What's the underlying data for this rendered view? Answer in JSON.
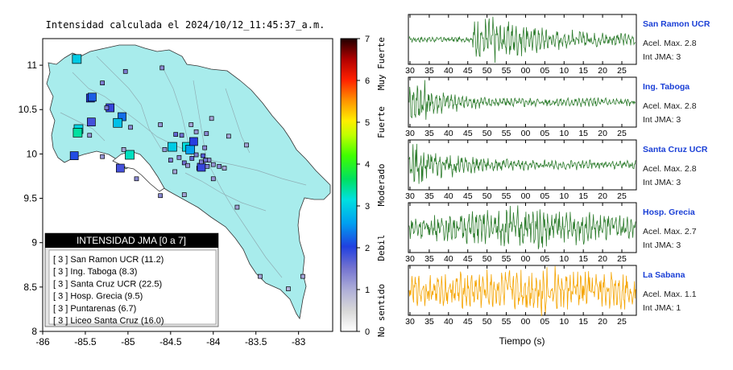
{
  "map": {
    "title": "Intensidad calculada el 2024/10/12_11:45:37_a.m.",
    "x_ticks": [
      "-86",
      "-85.5",
      "-85",
      "-84.5",
      "-84",
      "-83.5",
      "-83"
    ],
    "y_ticks": [
      "11",
      "10.5",
      "10",
      "9.5",
      "9",
      "8.5",
      "8"
    ],
    "legend": {
      "title": "INTENSIDAD JMA [0 a 7]",
      "items": [
        "[ 3 ]  San Ramon UCR (11.2)",
        "[ 3 ]  Ing. Taboga (8.3)",
        "[ 3 ]  Santa Cruz UCR (22.5)",
        "[ 3 ]  Hosp. Grecia (9.5)",
        "[ 3 ]  Puntarenas (6.7)",
        "[ 3 ]  Liceo Santa Cruz (16.0)"
      ]
    },
    "stations": [
      {
        "lon": -85.6,
        "lat": 11.07,
        "i": 3.0
      },
      {
        "lon": -85.44,
        "lat": 10.63,
        "i": 2.0
      },
      {
        "lon": -85.42,
        "lat": 10.64,
        "i": 2.2
      },
      {
        "lon": -85.21,
        "lat": 10.52,
        "i": 1.9
      },
      {
        "lon": -85.07,
        "lat": 10.42,
        "i": 2.3
      },
      {
        "lon": -85.43,
        "lat": 10.36,
        "i": 1.8
      },
      {
        "lon": -85.12,
        "lat": 10.35,
        "i": 2.9
      },
      {
        "lon": -85.58,
        "lat": 10.28,
        "i": 3.1
      },
      {
        "lon": -85.59,
        "lat": 10.24,
        "i": 3.4
      },
      {
        "lon": -85.63,
        "lat": 9.98,
        "i": 2.1
      },
      {
        "lon": -84.98,
        "lat": 9.99,
        "i": 3.3
      },
      {
        "lon": -84.48,
        "lat": 10.08,
        "i": 3.0
      },
      {
        "lon": -84.31,
        "lat": 10.08,
        "i": 3.2
      },
      {
        "lon": -84.27,
        "lat": 10.05,
        "i": 2.6
      },
      {
        "lon": -84.23,
        "lat": 10.14,
        "i": 2.0
      },
      {
        "lon": -85.09,
        "lat": 9.84,
        "i": 1.8
      },
      {
        "lon": -84.17,
        "lat": 9.84,
        "i": 1.6
      },
      {
        "lon": -84.14,
        "lat": 9.85,
        "i": 1.9
      },
      {
        "lon": -85.3,
        "lat": 10.8,
        "i": 1.4
      },
      {
        "lon": -85.03,
        "lat": 10.93,
        "i": 1.4
      },
      {
        "lon": -84.6,
        "lat": 10.97,
        "i": 1.3
      },
      {
        "lon": -85.25,
        "lat": 10.52,
        "i": 1.4
      },
      {
        "lon": -84.97,
        "lat": 10.3,
        "i": 1.3
      },
      {
        "lon": -85.45,
        "lat": 10.21,
        "i": 1.2
      },
      {
        "lon": -85.05,
        "lat": 10.05,
        "i": 1.1
      },
      {
        "lon": -84.9,
        "lat": 9.72,
        "i": 1.3
      },
      {
        "lon": -85.3,
        "lat": 9.97,
        "i": 1.2
      },
      {
        "lon": -84.62,
        "lat": 10.33,
        "i": 1.2
      },
      {
        "lon": -84.44,
        "lat": 10.22,
        "i": 1.6
      },
      {
        "lon": -84.37,
        "lat": 10.21,
        "i": 1.5
      },
      {
        "lon": -84.26,
        "lat": 10.33,
        "i": 1.1
      },
      {
        "lon": -84.2,
        "lat": 10.25,
        "i": 1.2
      },
      {
        "lon": -84.02,
        "lat": 10.4,
        "i": 1.1
      },
      {
        "lon": -84.08,
        "lat": 10.23,
        "i": 1.3
      },
      {
        "lon": -83.82,
        "lat": 10.2,
        "i": 1.1
      },
      {
        "lon": -83.61,
        "lat": 10.1,
        "i": 1.1
      },
      {
        "lon": -84.5,
        "lat": 9.93,
        "i": 1.4
      },
      {
        "lon": -84.4,
        "lat": 9.96,
        "i": 1.3
      },
      {
        "lon": -84.34,
        "lat": 9.9,
        "i": 1.5
      },
      {
        "lon": -84.25,
        "lat": 9.95,
        "i": 1.6
      },
      {
        "lon": -84.2,
        "lat": 9.99,
        "i": 1.4
      },
      {
        "lon": -84.12,
        "lat": 9.98,
        "i": 1.7
      },
      {
        "lon": -84.05,
        "lat": 9.93,
        "i": 1.3
      },
      {
        "lon": -84.0,
        "lat": 9.88,
        "i": 1.2
      },
      {
        "lon": -83.93,
        "lat": 9.86,
        "i": 1.3
      },
      {
        "lon": -83.87,
        "lat": 9.84,
        "i": 1.1
      },
      {
        "lon": -84.07,
        "lat": 9.86,
        "i": 1.4
      },
      {
        "lon": -84.3,
        "lat": 9.87,
        "i": 1.2
      },
      {
        "lon": -84.45,
        "lat": 9.8,
        "i": 1.1
      },
      {
        "lon": -84.0,
        "lat": 9.72,
        "i": 1.2
      },
      {
        "lon": -84.34,
        "lat": 9.54,
        "i": 1.1
      },
      {
        "lon": -84.62,
        "lat": 9.53,
        "i": 1.3
      },
      {
        "lon": -83.72,
        "lat": 9.4,
        "i": 1.1
      },
      {
        "lon": -83.45,
        "lat": 8.62,
        "i": 1.1
      },
      {
        "lon": -83.12,
        "lat": 8.48,
        "i": 1.0
      },
      {
        "lon": -82.95,
        "lat": 8.62,
        "i": 1.1
      },
      {
        "lon": -84.57,
        "lat": 10.05,
        "i": 1.2
      },
      {
        "lon": -84.1,
        "lat": 10.07,
        "i": 1.3
      },
      {
        "lon": -84.09,
        "lat": 9.93,
        "i": 1.5
      },
      {
        "lon": -84.14,
        "lat": 9.91,
        "i": 1.4
      }
    ]
  },
  "colorbar": {
    "ticks": [
      "0",
      "1",
      "2",
      "3",
      "4",
      "5",
      "6",
      "7"
    ],
    "labels": [
      "No sentido",
      "Debil",
      "Moderado",
      "Fuerte",
      "Muy Fuerte"
    ]
  },
  "traces": [
    {
      "station": "San Ramon UCR",
      "acel": "Acel. Max. 2.8",
      "int": "Int JMA: 3",
      "color": "#2e7d2e",
      "amp": 0.9,
      "onset": 0.28,
      "decay": 0.25,
      "peak": 0.35
    },
    {
      "station": "Ing. Taboga",
      "acel": "Acel. Max. 2.8",
      "int": "Int JMA: 3",
      "color": "#2e7d2e",
      "amp": 0.95,
      "onset": 0.0,
      "decay": 0.08,
      "peak": 0.05
    },
    {
      "station": "Santa Cruz UCR",
      "acel": "Acel. Max. 2.8",
      "int": "Int JMA: 3",
      "color": "#2e7d2e",
      "amp": 0.95,
      "onset": 0.0,
      "decay": 0.12,
      "peak": 0.05
    },
    {
      "station": "Hosp. Grecia",
      "acel": "Acel. Max. 2.7",
      "int": "Int JMA: 3",
      "color": "#2e7d2e",
      "amp": 0.85,
      "onset": 0.0,
      "decay": 0.5,
      "peak": 0.52
    },
    {
      "station": "La Sabana",
      "acel": "Acel. Max. 1.1",
      "int": "Int JMA: 1",
      "color": "#f5a400",
      "amp": 0.9,
      "onset": 0.0,
      "decay": 0.9,
      "peak": 0.6
    }
  ],
  "trace_ticks": [
    "30",
    "35",
    "40",
    "45",
    "50",
    "55",
    "00",
    "05",
    "10",
    "15",
    "20",
    "25"
  ],
  "xlabel": "Tiempo (s)"
}
